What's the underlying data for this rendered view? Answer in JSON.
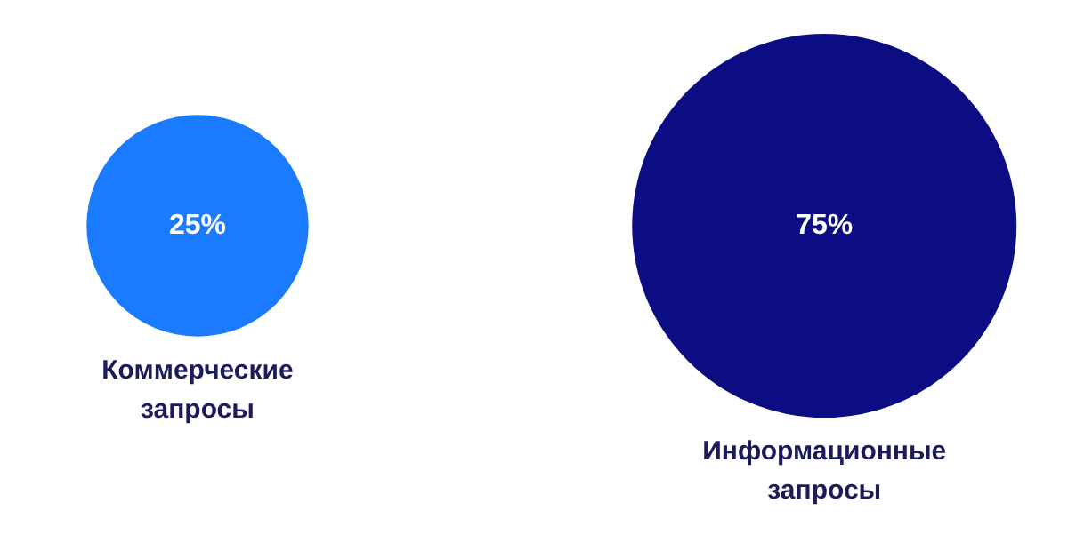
{
  "chart_data": {
    "type": "other",
    "categories": [
      "Коммерческие запросы",
      "Информационные запросы"
    ],
    "values": [
      25,
      75
    ],
    "value_labels": [
      "25%",
      "75%"
    ],
    "colors": [
      "#1a7bff",
      "#0c0d82"
    ]
  }
}
